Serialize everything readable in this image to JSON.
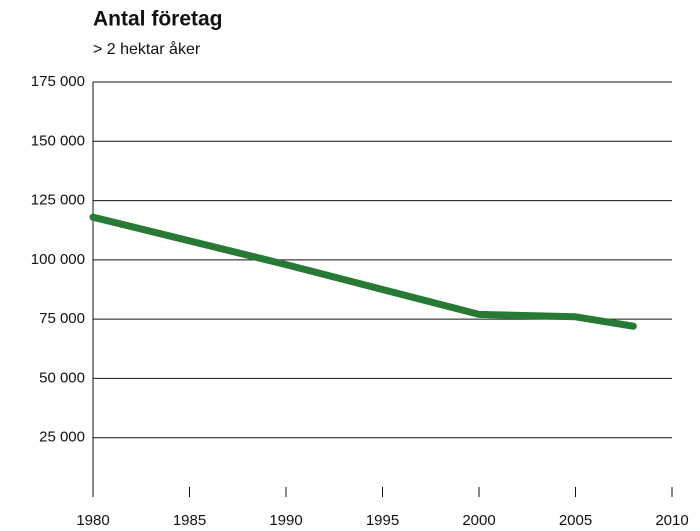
{
  "chart_data": {
    "type": "line",
    "title": "Antal företag",
    "subtitle": "> 2 hektar åker",
    "x": [
      1980,
      1990,
      2000,
      2005,
      2008
    ],
    "series": [
      {
        "name": "Antal företag",
        "color": "#267a33",
        "values": [
          118000,
          98000,
          77000,
          76000,
          72000
        ]
      }
    ],
    "xlim": [
      1980,
      2010
    ],
    "xticks": [
      1980,
      1985,
      1990,
      1995,
      2000,
      2005,
      2010
    ],
    "ylim": [
      0,
      175000
    ],
    "yticks": [
      {
        "value": 25000,
        "label": "25 000"
      },
      {
        "value": 50000,
        "label": "50 000"
      },
      {
        "value": 75000,
        "label": "75 000"
      },
      {
        "value": 100000,
        "label": "100 000"
      },
      {
        "value": 125000,
        "label": "125 000"
      },
      {
        "value": 150000,
        "label": "150 000"
      },
      {
        "value": 175000,
        "label": "175 000"
      }
    ],
    "grid": true
  }
}
